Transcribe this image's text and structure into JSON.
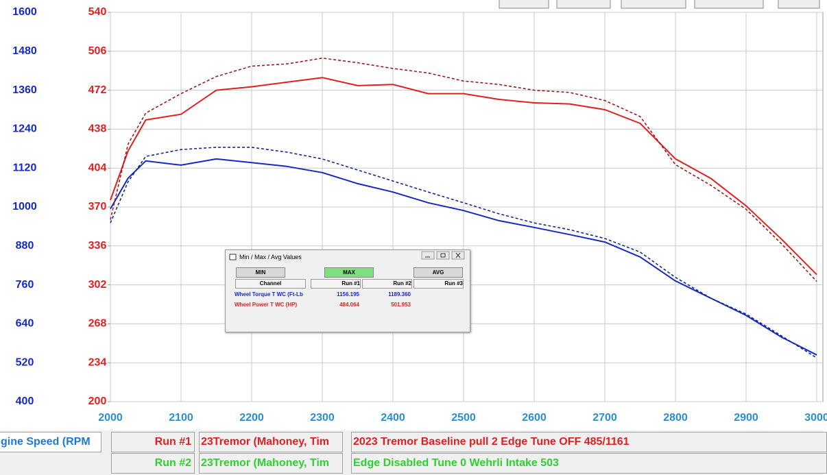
{
  "chart_data": {
    "type": "line",
    "x": [
      2000,
      2025,
      2050,
      2100,
      2150,
      2200,
      2250,
      2300,
      2350,
      2400,
      2450,
      2500,
      2550,
      2600,
      2650,
      2700,
      2750,
      2800,
      2850,
      2900,
      2950,
      3000
    ],
    "xlim": [
      2000,
      3000
    ],
    "xticks": [
      2000,
      2100,
      2200,
      2300,
      2400,
      2500,
      2600,
      2700,
      2800,
      2900,
      3000
    ],
    "ylim": [
      400,
      1600
    ],
    "yticks": [
      400,
      520,
      640,
      760,
      880,
      1000,
      1120,
      1240,
      1360,
      1480,
      1600
    ],
    "y2lim": [
      200,
      540
    ],
    "y2ticks": [
      200,
      234,
      268,
      302,
      336,
      370,
      404,
      438,
      472,
      506,
      540
    ],
    "grid": true,
    "series": [
      {
        "color": "#1428c8",
        "dash": "solid",
        "values": [
          994,
          1089,
          1142,
          1129,
          1148,
          1137,
          1125,
          1106,
          1072,
          1046,
          1013,
          989,
          958,
          937,
          915,
          892,
          846,
          772,
          719,
          666,
          599,
          544
        ]
      },
      {
        "color": "#102890",
        "dash": "dashed",
        "values": [
          951,
          1078,
          1156,
          1177,
          1184,
          1184,
          1169,
          1148,
          1114,
          1080,
          1046,
          1013,
          979,
          951,
          930,
          903,
          861,
          783,
          719,
          670,
          603,
          535
        ]
      },
      {
        "color": "#e02020",
        "dash": "solid",
        "axis": "y2",
        "values": [
          376,
          419,
          446,
          451,
          472,
          475,
          479,
          483,
          476,
          477,
          469,
          469,
          464,
          461,
          460,
          455,
          443,
          412,
          395,
          371,
          342,
          311
        ]
      },
      {
        "color": "#a01818",
        "dash": "dashed",
        "axis": "y2",
        "values": [
          359,
          425,
          452,
          469,
          484,
          493,
          495,
          500,
          496,
          491,
          487,
          480,
          477,
          472,
          470,
          463,
          449,
          407,
          389,
          368,
          338,
          305
        ]
      }
    ]
  },
  "dialog": {
    "title": "Min / Max / Avg Values",
    "buttons": [
      "MIN",
      "MAX",
      "AVG"
    ],
    "headers": [
      "Channel",
      "Run #1",
      "Run #2",
      "Run #3"
    ],
    "rows": [
      [
        "Wheel Torque T WC (Ft-Lb",
        "1156.195",
        "1189.360"
      ],
      [
        "Wheel Power T WC (HP)",
        "484.064",
        "501.953"
      ]
    ]
  },
  "footer": {
    "axis_label": "gine Speed (RPM",
    "runs": [
      [
        "Run #1",
        "23Tremor (Mahoney, Tim",
        "2023 Tremor Baseline pull 2 Edge Tune OFF 485/1161"
      ],
      [
        "Run #2",
        "23Tremor (Mahoney, Tim",
        "Edge Disabled Tune 0 Wehrli Intake 503"
      ]
    ]
  }
}
